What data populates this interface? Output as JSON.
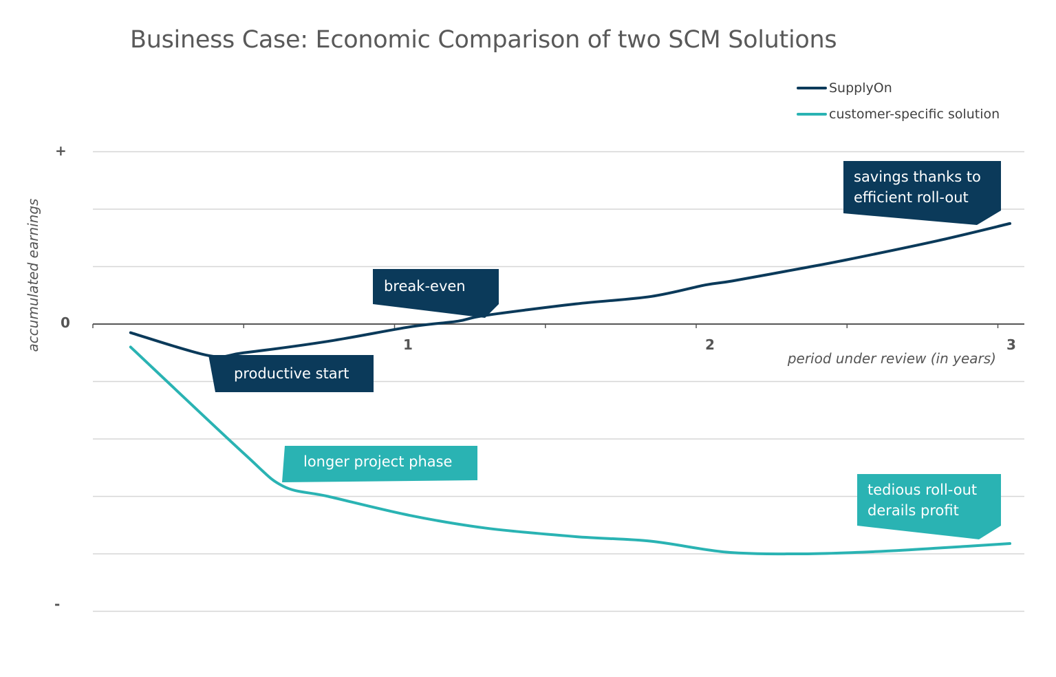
{
  "chart_data": {
    "type": "line",
    "title": "Business Case: Economic Comparison of two SCM Solutions",
    "xlabel": "period under review (in years)",
    "ylabel": "accumulated earnings",
    "x_ticks": [
      "1",
      "2",
      "3"
    ],
    "y_ticks": {
      "top": "+",
      "zero": "0",
      "bottom": "-"
    },
    "xlim": [
      0,
      3
    ],
    "ylim": [
      -5,
      3
    ],
    "grid": true,
    "legend_position": "top-right",
    "series": [
      {
        "name": "SupplyOn",
        "color": "#0b3a5a",
        "x": [
          0.125,
          0.385,
          0.5,
          0.78,
          1.05,
          1.21,
          1.3,
          1.6,
          1.85,
          2.03,
          2.12,
          2.35,
          2.5,
          2.8,
          3.04
        ],
        "y": [
          -0.15,
          -0.55,
          -0.5,
          -0.3,
          -0.05,
          0.05,
          0.15,
          0.35,
          0.48,
          0.68,
          0.75,
          0.97,
          1.12,
          1.45,
          1.75
        ]
      },
      {
        "name": "customer-specific solution",
        "color": "#2ab3b3",
        "x": [
          0.125,
          0.5,
          0.63,
          0.78,
          1.05,
          1.3,
          1.6,
          1.85,
          2.1,
          2.35,
          2.6,
          2.8,
          3.04
        ],
        "y": [
          -0.4,
          -2.25,
          -2.82,
          -3.0,
          -3.33,
          -3.55,
          -3.7,
          -3.78,
          -3.97,
          -4.0,
          -3.96,
          -3.9,
          -3.82
        ]
      }
    ],
    "annotations": [
      {
        "text": "productive start",
        "series": "SupplyOn",
        "color": "#0b3a5a"
      },
      {
        "text": "break-even",
        "series": "SupplyOn",
        "color": "#0b3a5a"
      },
      {
        "text": "savings thanks to efficient roll-out",
        "series": "SupplyOn",
        "color": "#0b3a5a"
      },
      {
        "text": "longer project phase",
        "series": "customer-specific solution",
        "color": "#2ab3b3"
      },
      {
        "text": "tedious roll-out derails profit",
        "series": "customer-specific solution",
        "color": "#2ab3b3"
      }
    ],
    "callout_lines": {
      "savings": [
        "savings thanks to",
        "efficient roll-out"
      ],
      "tedious": [
        "tedious roll-out",
        "derails profit"
      ]
    }
  }
}
